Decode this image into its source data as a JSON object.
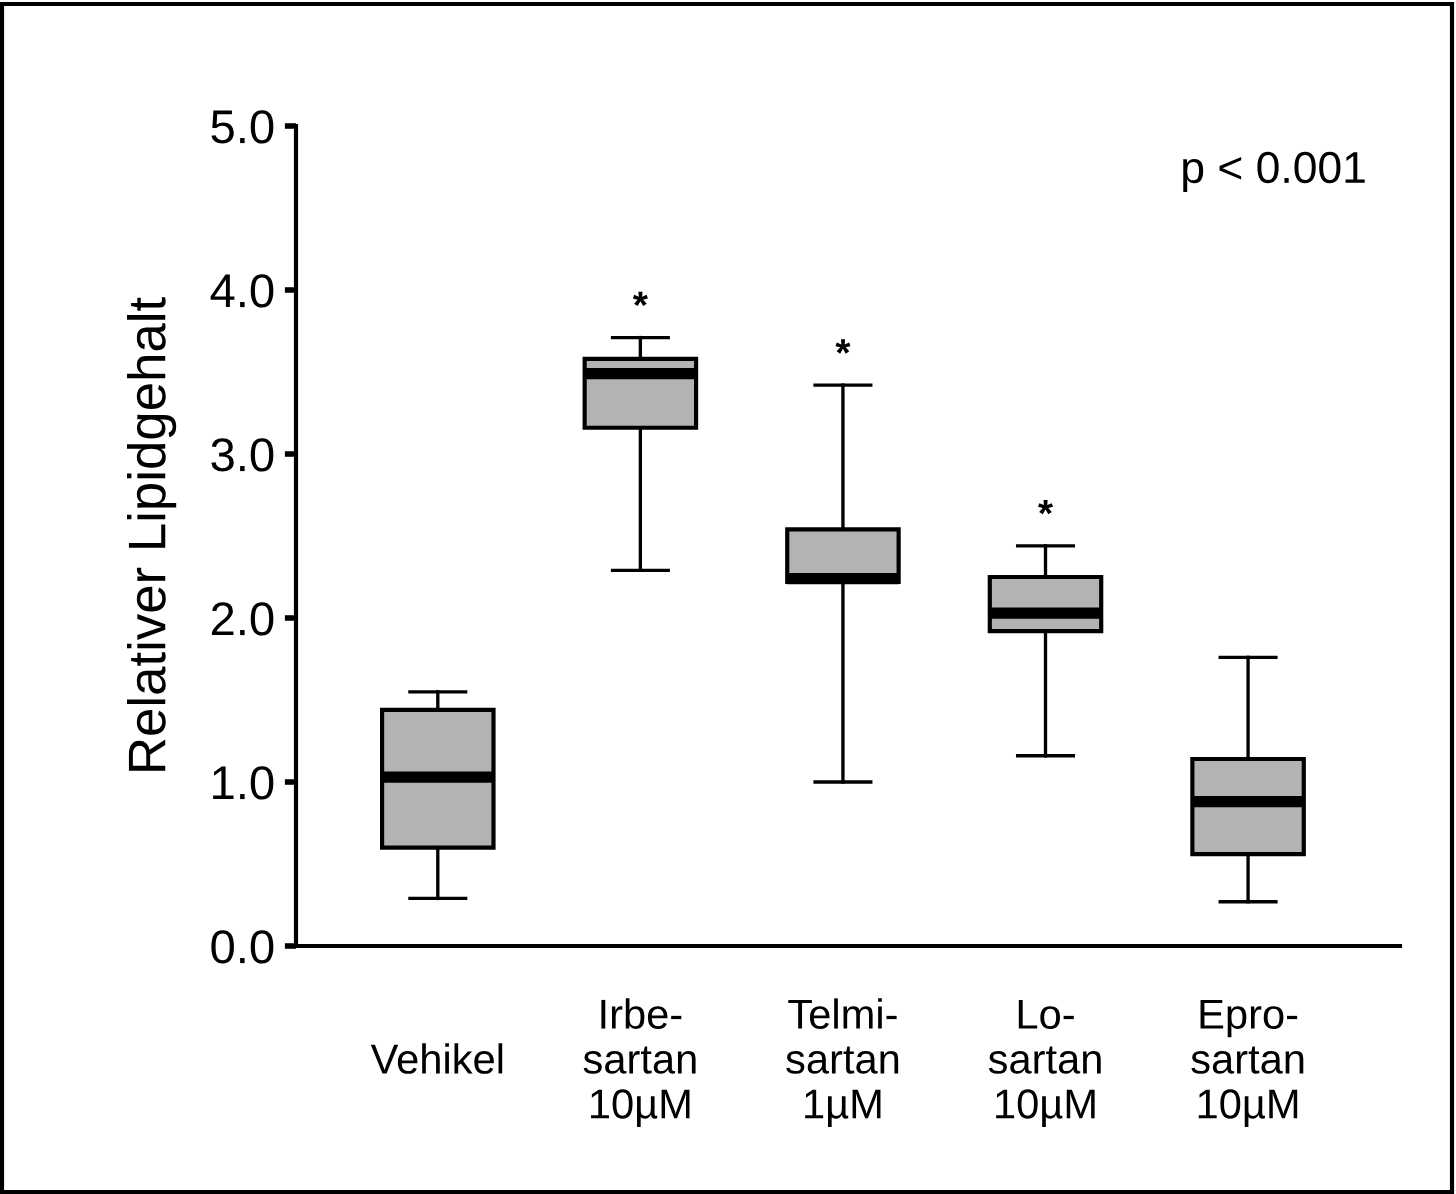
{
  "chart_data": {
    "type": "box",
    "ylabel": "Relativer Lipidgehalt",
    "categories": [
      "Vehikel",
      "Irbe-\nsartan\n10µM",
      "Telmi-\nsartan\n1µM",
      "Lo-\nsartan\n10µM",
      "Epro-\nsartan\n10µM"
    ],
    "boxes": [
      {
        "low": 0.29,
        "q1": 0.6,
        "median": 1.03,
        "q3": 1.44,
        "high": 1.55
      },
      {
        "low": 2.29,
        "q1": 3.16,
        "median": 3.49,
        "q3": 3.58,
        "high": 3.71
      },
      {
        "low": 1.0,
        "q1": 2.22,
        "median": 2.24,
        "q3": 2.54,
        "high": 3.42
      },
      {
        "low": 1.16,
        "q1": 1.92,
        "median": 2.03,
        "q3": 2.25,
        "high": 2.44
      },
      {
        "low": 0.27,
        "q1": 0.56,
        "median": 0.88,
        "q3": 1.14,
        "high": 1.76
      }
    ],
    "color": "#b3b3b3",
    "ylim": [
      0,
      5
    ],
    "yticks": [
      {
        "value": 0,
        "label": "0.0"
      },
      {
        "value": 1,
        "label": "1.0"
      },
      {
        "value": 2,
        "label": "2.0"
      },
      {
        "value": 3,
        "label": "3.0"
      },
      {
        "value": 4,
        "label": "4.0"
      },
      {
        "value": 5,
        "label": "5.0"
      }
    ],
    "annotations": [
      "p < 0.001",
      {
        "text": "*",
        "x": "Irbe-\nsartan\n10µM",
        "y": 3.71
      },
      {
        "text": "*",
        "x": "Telmi-\nsartan\n1µM",
        "y": 3.42
      },
      {
        "text": "*",
        "x": "Lo-\nsartan\n10µM",
        "y": 2.44
      }
    ],
    "grid": false,
    "legend": false
  }
}
